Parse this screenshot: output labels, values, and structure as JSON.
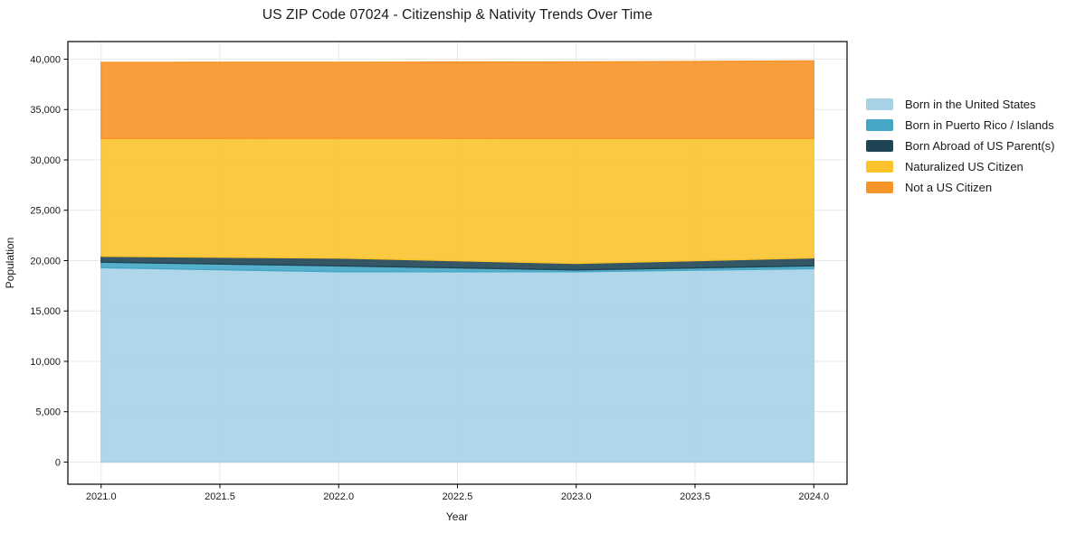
{
  "chart_data": {
    "type": "area",
    "stacked": true,
    "title": "US ZIP Code 07024 - Citizenship & Nativity Trends Over Time",
    "xlabel": "Year",
    "ylabel": "Population",
    "x": [
      2021,
      2022,
      2023,
      2024
    ],
    "series": [
      {
        "name": "Born in the United States",
        "color": "#A6D2E7",
        "values": [
          19300,
          18900,
          18900,
          19200
        ]
      },
      {
        "name": "Born in Puerto Rico / Islands",
        "color": "#45A7C5",
        "values": [
          550,
          580,
          175,
          280
        ]
      },
      {
        "name": "Born Abroad of US Parent(s)",
        "color": "#1F4554",
        "values": [
          580,
          770,
          650,
          800
        ]
      },
      {
        "name": "Naturalized US Citizen",
        "color": "#FCC32D",
        "values": [
          11700,
          11900,
          12400,
          11850
        ]
      },
      {
        "name": "Not a US Citizen",
        "color": "#F79428",
        "values": [
          7550,
          7550,
          7600,
          7700
        ]
      }
    ],
    "cumulative_totals": [
      39680,
      39700,
      39725,
      39830
    ],
    "xlim": [
      2020.86,
      2024.14
    ],
    "ylim": [
      -2200,
      41750
    ],
    "xticks": {
      "values": [
        2021.0,
        2021.5,
        2022.0,
        2022.5,
        2023.0,
        2023.5,
        2024.0
      ],
      "labels": [
        "2021.0",
        "2021.5",
        "2022.0",
        "2022.5",
        "2023.0",
        "2023.5",
        "2024.0"
      ]
    },
    "yticks": {
      "values": [
        0,
        5000,
        10000,
        15000,
        20000,
        25000,
        30000,
        35000,
        40000
      ],
      "labels": [
        "0",
        "5,000",
        "10,000",
        "15,000",
        "20,000",
        "25,000",
        "30,000",
        "35,000",
        "40,000"
      ]
    },
    "grid": true,
    "grid_color": "#e7e7e7",
    "frame_color": "#000000",
    "legend_position": "right"
  }
}
